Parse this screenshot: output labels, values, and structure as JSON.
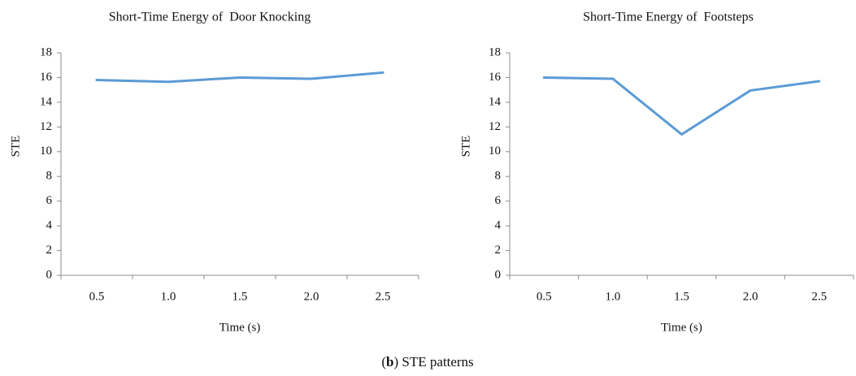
{
  "chart_data": [
    {
      "type": "line",
      "title": "Short-Time Energy of  Door Knocking",
      "xlabel": "Time (s)",
      "ylabel": "STE",
      "categories": [
        "0.5",
        "1.0",
        "1.5",
        "2.0",
        "2.5"
      ],
      "values": [
        15.8,
        15.65,
        16.0,
        15.9,
        16.4
      ],
      "color": "#5b9bd5",
      "ylim": [
        0,
        18
      ],
      "yticks": [
        0,
        2,
        4,
        6,
        8,
        10,
        12,
        14,
        16,
        18
      ],
      "grid": false
    },
    {
      "type": "line",
      "title": "Short-Time Energy of  Footsteps",
      "xlabel": "Time (s)",
      "ylabel": "STE",
      "categories": [
        "0.5",
        "1.0",
        "1.5",
        "2.0",
        "2.5"
      ],
      "values": [
        16.0,
        15.9,
        11.4,
        14.95,
        15.7
      ],
      "color": "#5b9bd5",
      "ylim": [
        0,
        18
      ],
      "yticks": [
        0,
        2,
        4,
        6,
        8,
        10,
        12,
        14,
        16,
        18
      ],
      "grid": false
    }
  ],
  "caption": [
    "(",
    "b",
    ") STE patterns"
  ]
}
